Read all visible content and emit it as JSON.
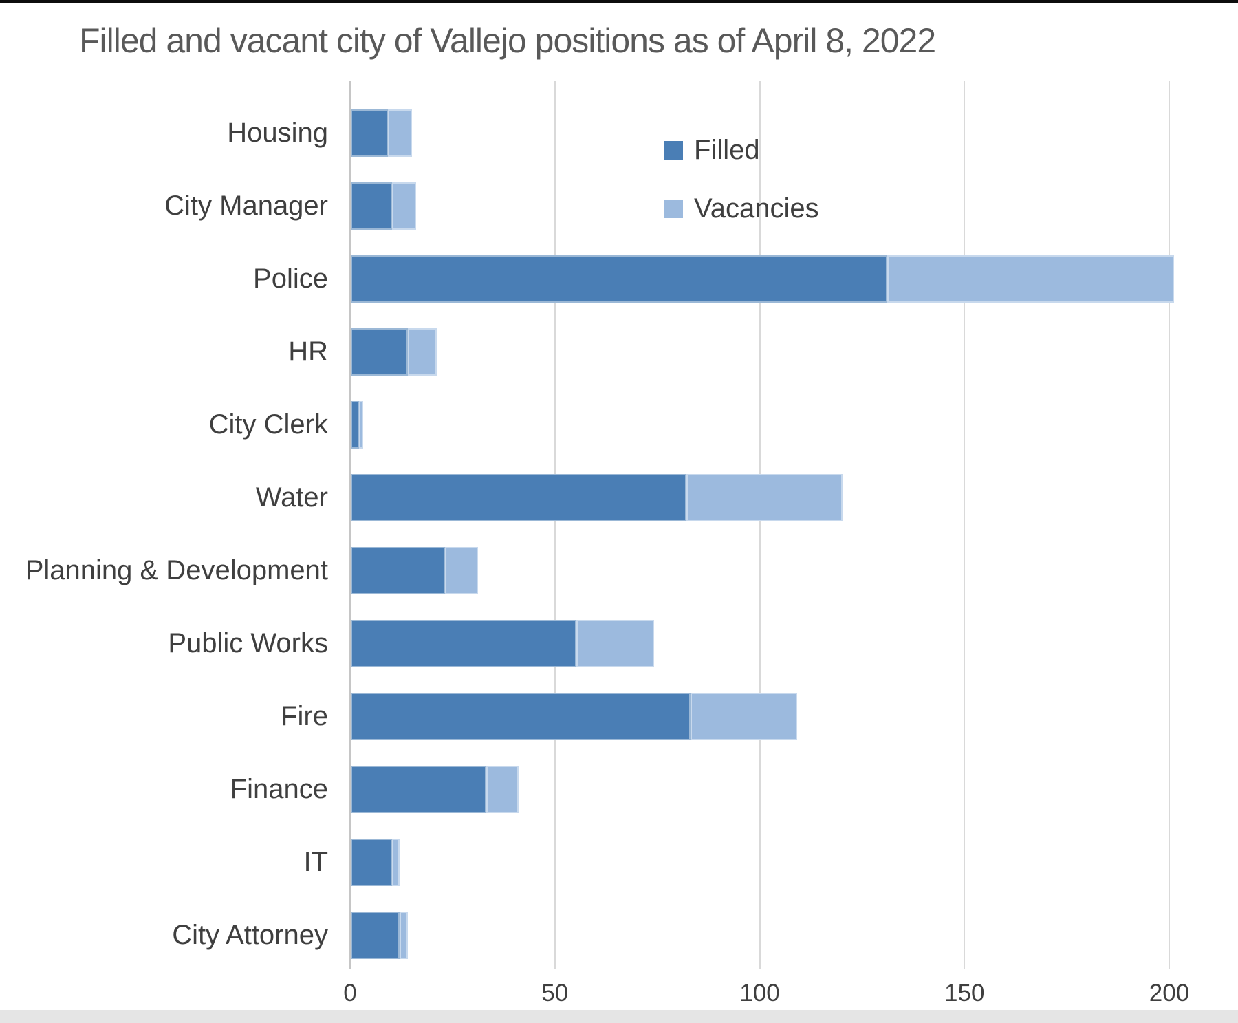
{
  "title": "Filled and vacant city of Vallejo positions as of April 8, 2022",
  "legend": {
    "filled_label": "Filled",
    "vacancies_label": "Vacancies"
  },
  "colors": {
    "filled": "#4a7eb5",
    "vacancies": "#9cbade",
    "gridline": "#d9d9d9",
    "axis_line": "#c6c6c6",
    "title_text": "#595959",
    "label_text": "#3f3f3f"
  },
  "chart_data": {
    "type": "bar",
    "orientation": "horizontal",
    "stacked": true,
    "title": "Filled and vacant city of Vallejo positions as of April 8, 2022",
    "categories": [
      "Housing",
      "City Manager",
      "Police",
      "HR",
      "City Clerk",
      "Water",
      "Planning & Development",
      "Public Works",
      "Fire",
      "Finance",
      "IT",
      "City Attorney"
    ],
    "series": [
      {
        "name": "Filled",
        "values": [
          9,
          10,
          131,
          14,
          2,
          82,
          23,
          55,
          83,
          33,
          10,
          12
        ]
      },
      {
        "name": "Vacancies",
        "values": [
          6,
          6,
          70,
          7,
          1,
          38,
          8,
          19,
          26,
          8,
          2,
          2
        ]
      }
    ],
    "totals": [
      15,
      16,
      201,
      21,
      3,
      120,
      31,
      74,
      109,
      41,
      12,
      14
    ],
    "xlabel": "",
    "ylabel": "",
    "xlim": [
      0,
      200
    ],
    "xticks": [
      0,
      50,
      100,
      150,
      200
    ],
    "xtick_labels": [
      "0",
      "50",
      "100",
      "150",
      "200"
    ],
    "grid": "vertical",
    "legend_position": "upper-middle"
  }
}
